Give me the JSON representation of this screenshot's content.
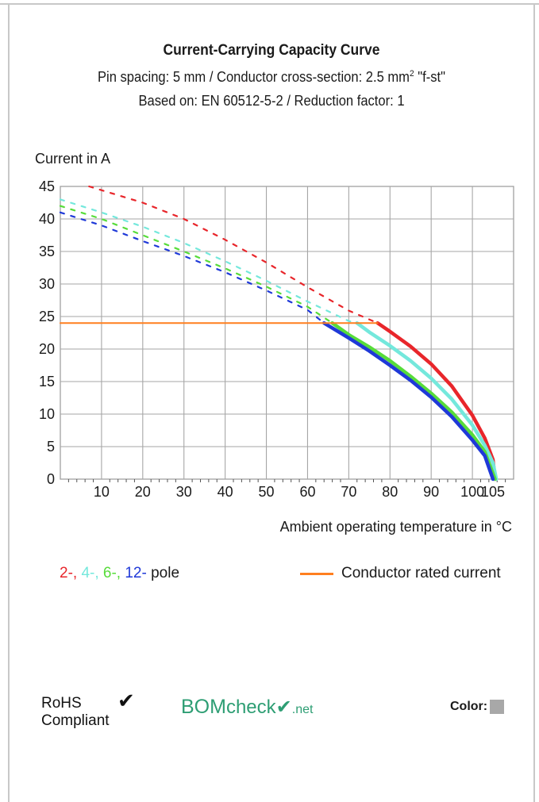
{
  "header": {
    "title": "Current-Carrying Capacity Curve",
    "line2_pre": "Pin spacing: 5 mm / Conductor cross-section: 2.5 mm",
    "line2_sup": "2",
    "line2_post": " \"f-st\"",
    "line3": "Based on: EN 60512-5-2 / Reduction factor: 1"
  },
  "legend": {
    "poles": [
      {
        "label": "2-",
        "color": "#e8262b"
      },
      {
        "label": "4-",
        "color": "#74e8dc"
      },
      {
        "label": "6-",
        "color": "#57dc3a"
      },
      {
        "label": "12-",
        "color": "#1f39d8"
      }
    ],
    "poles_suffix": "pole",
    "rated_label": "Conductor rated current",
    "rated_color": "#ff7f1f"
  },
  "chart_data": {
    "type": "line",
    "ylabel": "Current in A",
    "xlabel": "Ambient operating temperature in °C",
    "x_ticks": [
      10,
      20,
      30,
      40,
      50,
      60,
      70,
      80,
      90,
      100,
      105
    ],
    "y_ticks": [
      0,
      5,
      10,
      15,
      20,
      25,
      30,
      35,
      40,
      45
    ],
    "xlim": [
      0,
      110
    ],
    "ylim": [
      0,
      45
    ],
    "grid": true,
    "series": [
      {
        "name": "2-",
        "color": "#e8262b",
        "dashed": [
          [
            7,
            45
          ],
          [
            20,
            42.5
          ],
          [
            30,
            40
          ],
          [
            40,
            36.8
          ],
          [
            50,
            33.3
          ],
          [
            60,
            29.5
          ],
          [
            70,
            25.9
          ],
          [
            77,
            24
          ]
        ],
        "solid": [
          [
            77,
            24
          ],
          [
            80,
            22.7
          ],
          [
            85,
            20.4
          ],
          [
            90,
            17.7
          ],
          [
            95,
            14.3
          ],
          [
            100,
            9.8
          ],
          [
            103,
            6.3
          ],
          [
            105,
            3
          ],
          [
            105.5,
            0
          ]
        ]
      },
      {
        "name": "4-",
        "color": "#74e8dc",
        "dashed": [
          [
            0,
            43
          ],
          [
            10,
            41
          ],
          [
            20,
            38.8
          ],
          [
            30,
            36.3
          ],
          [
            40,
            33.5
          ],
          [
            50,
            30.5
          ],
          [
            60,
            27.3
          ],
          [
            70,
            24.3
          ],
          [
            72,
            24
          ]
        ],
        "solid": [
          [
            72,
            24
          ],
          [
            75,
            22.6
          ],
          [
            80,
            20.5
          ],
          [
            85,
            18.2
          ],
          [
            90,
            15.5
          ],
          [
            95,
            12.3
          ],
          [
            100,
            8.3
          ],
          [
            103,
            5.2
          ],
          [
            105,
            2.5
          ],
          [
            105.8,
            0
          ]
        ]
      },
      {
        "name": "6-",
        "color": "#57dc3a",
        "dashed": [
          [
            0,
            42
          ],
          [
            10,
            40
          ],
          [
            20,
            37.5
          ],
          [
            30,
            35
          ],
          [
            40,
            32.4
          ],
          [
            50,
            29.6
          ],
          [
            60,
            26.5
          ],
          [
            66,
            24
          ]
        ],
        "solid": [
          [
            66,
            24
          ],
          [
            70,
            22.2
          ],
          [
            75,
            20.3
          ],
          [
            80,
            18.2
          ],
          [
            85,
            15.8
          ],
          [
            90,
            13.2
          ],
          [
            95,
            10.3
          ],
          [
            100,
            6.8
          ],
          [
            103,
            4.2
          ],
          [
            105.5,
            0
          ]
        ]
      },
      {
        "name": "12-",
        "color": "#1f39d8",
        "dashed": [
          [
            0,
            41
          ],
          [
            10,
            39
          ],
          [
            20,
            36.6
          ],
          [
            30,
            34.3
          ],
          [
            40,
            31.8
          ],
          [
            50,
            29
          ],
          [
            60,
            26
          ],
          [
            64,
            24
          ]
        ],
        "solid": [
          [
            64,
            24
          ],
          [
            70,
            21.7
          ],
          [
            75,
            19.7
          ],
          [
            80,
            17.5
          ],
          [
            85,
            15.2
          ],
          [
            90,
            12.6
          ],
          [
            95,
            9.6
          ],
          [
            100,
            6
          ],
          [
            103,
            3.6
          ],
          [
            105,
            0
          ]
        ]
      },
      {
        "name": "Conductor rated current",
        "color": "#ff7f1f",
        "solid": [
          [
            0,
            24
          ],
          [
            77,
            24
          ]
        ]
      }
    ]
  },
  "footer": {
    "rohs_line1": "RoHS",
    "rohs_line2": "Compliant",
    "rohs_check": "✔",
    "bom_part1": "BOM",
    "bom_part2": "check",
    "bom_part3": "✔",
    "bom_part4": ".net",
    "color_label": "Color:",
    "color_swatch": "#a8a8a8"
  }
}
